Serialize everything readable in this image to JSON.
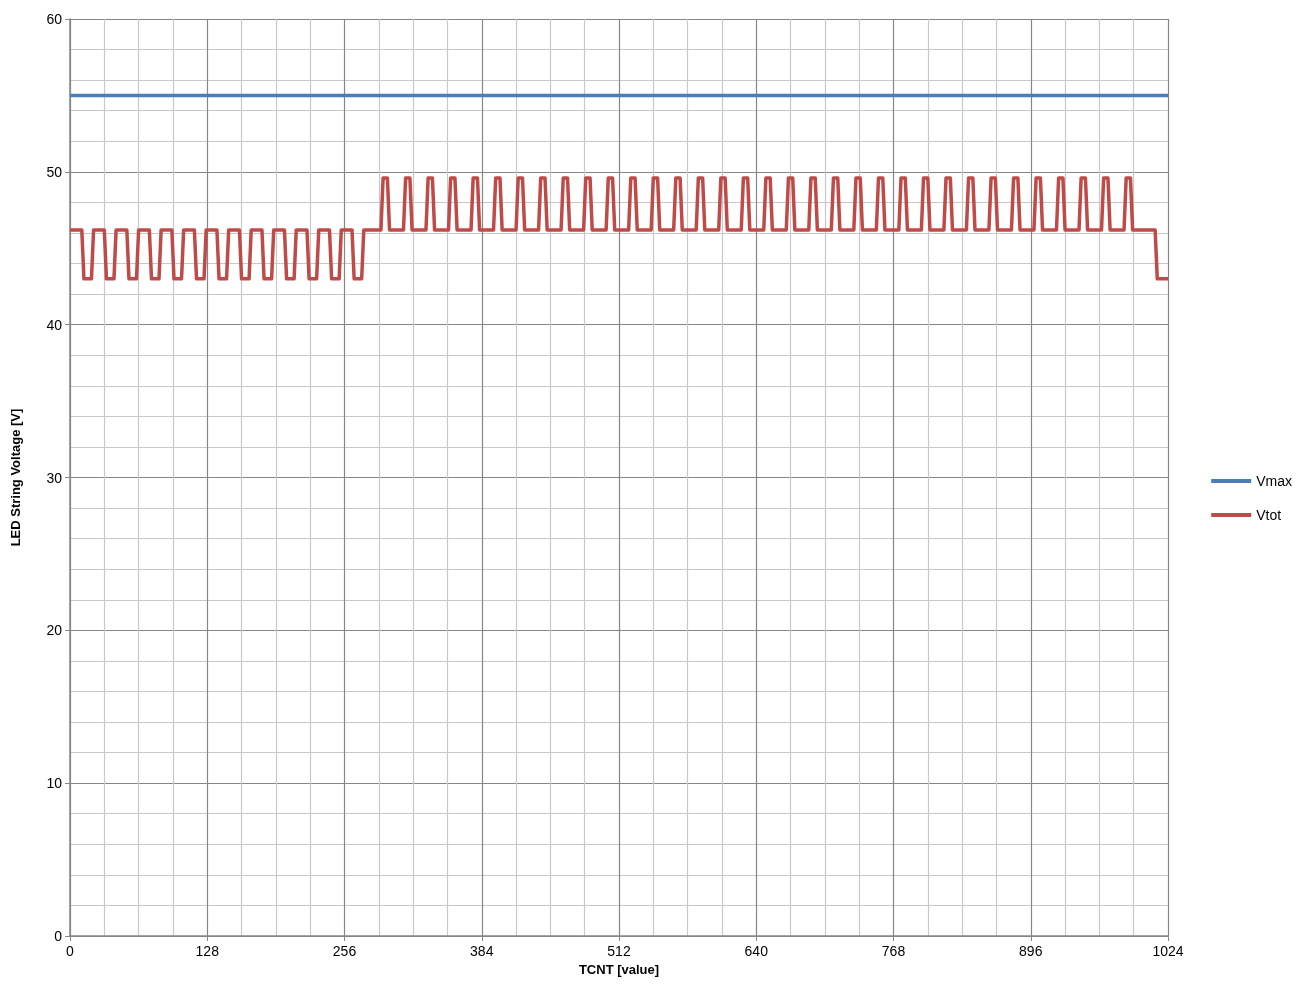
{
  "chart_data": {
    "type": "line",
    "xlabel": "TCNT [value]",
    "ylabel": "LED String Voltage [V]",
    "xlim": [
      0,
      1024
    ],
    "xticks": [
      0,
      128,
      256,
      384,
      512,
      640,
      768,
      896,
      1024
    ],
    "ylim": [
      0,
      60
    ],
    "yticks": [
      0,
      10,
      20,
      30,
      40,
      50,
      60
    ],
    "grid": true,
    "legend": "right",
    "marker": "none",
    "line_style": "solid",
    "series": [
      {
        "name": "Vmax",
        "color": "#4a7ebb",
        "x": [
          0,
          1024
        ],
        "values": [
          55,
          55
        ]
      },
      {
        "name": "Vtot",
        "color": "#be4b48",
        "x": [
          0,
          11,
          13,
          20,
          22,
          32,
          34,
          41,
          43,
          53,
          55,
          62,
          64,
          74,
          76,
          83,
          85,
          95,
          97,
          104,
          106,
          116,
          118,
          125,
          127,
          137,
          139,
          146,
          148,
          158,
          160,
          167,
          169,
          179,
          181,
          188,
          190,
          200,
          202,
          209,
          211,
          221,
          223,
          230,
          232,
          242,
          244,
          251,
          253,
          263,
          265,
          272,
          274,
          290,
          292,
          296,
          298,
          311,
          313,
          317,
          319,
          332,
          334,
          338,
          340,
          353,
          355,
          359,
          361,
          374,
          376,
          380,
          382,
          395,
          397,
          401,
          403,
          416,
          418,
          422,
          424,
          437,
          439,
          443,
          445,
          458,
          460,
          464,
          466,
          479,
          481,
          485,
          487,
          500,
          502,
          506,
          508,
          521,
          523,
          527,
          529,
          542,
          544,
          548,
          550,
          563,
          565,
          569,
          571,
          584,
          586,
          590,
          592,
          605,
          607,
          611,
          613,
          626,
          628,
          632,
          634,
          647,
          649,
          653,
          655,
          668,
          670,
          674,
          676,
          689,
          691,
          695,
          697,
          710,
          712,
          716,
          718,
          731,
          733,
          737,
          739,
          752,
          754,
          758,
          760,
          773,
          775,
          779,
          781,
          794,
          796,
          800,
          802,
          815,
          817,
          821,
          823,
          836,
          838,
          842,
          844,
          857,
          859,
          863,
          865,
          878,
          880,
          884,
          886,
          899,
          901,
          905,
          907,
          920,
          922,
          926,
          928,
          941,
          943,
          947,
          949,
          962,
          964,
          968,
          970,
          983,
          985,
          989,
          991,
          1012,
          1014,
          1024
        ],
        "values": [
          46.2,
          46.2,
          43,
          43,
          46.2,
          46.2,
          43,
          43,
          46.2,
          46.2,
          43,
          43,
          46.2,
          46.2,
          43,
          43,
          46.2,
          46.2,
          43,
          43,
          46.2,
          46.2,
          43,
          43,
          46.2,
          46.2,
          43,
          43,
          46.2,
          46.2,
          43,
          43,
          46.2,
          46.2,
          43,
          43,
          46.2,
          46.2,
          43,
          43,
          46.2,
          46.2,
          43,
          43,
          46.2,
          46.2,
          43,
          43,
          46.2,
          46.2,
          43,
          43,
          46.2,
          46.2,
          49.6,
          49.6,
          46.2,
          46.2,
          49.6,
          49.6,
          46.2,
          46.2,
          49.6,
          49.6,
          46.2,
          46.2,
          49.6,
          49.6,
          46.2,
          46.2,
          49.6,
          49.6,
          46.2,
          46.2,
          49.6,
          49.6,
          46.2,
          46.2,
          49.6,
          49.6,
          46.2,
          46.2,
          49.6,
          49.6,
          46.2,
          46.2,
          49.6,
          49.6,
          46.2,
          46.2,
          49.6,
          49.6,
          46.2,
          46.2,
          49.6,
          49.6,
          46.2,
          46.2,
          49.6,
          49.6,
          46.2,
          46.2,
          49.6,
          49.6,
          46.2,
          46.2,
          49.6,
          49.6,
          46.2,
          46.2,
          49.6,
          49.6,
          46.2,
          46.2,
          49.6,
          49.6,
          46.2,
          46.2,
          49.6,
          49.6,
          46.2,
          46.2,
          49.6,
          49.6,
          46.2,
          46.2,
          49.6,
          49.6,
          46.2,
          46.2,
          49.6,
          49.6,
          46.2,
          46.2,
          49.6,
          49.6,
          46.2,
          46.2,
          49.6,
          49.6,
          46.2,
          46.2,
          49.6,
          49.6,
          46.2,
          46.2,
          49.6,
          49.6,
          46.2,
          46.2,
          49.6,
          49.6,
          46.2,
          46.2,
          49.6,
          49.6,
          46.2,
          46.2,
          49.6,
          49.6,
          46.2,
          46.2,
          49.6,
          49.6,
          46.2,
          46.2,
          49.6,
          49.6,
          46.2,
          46.2,
          49.6,
          49.6,
          46.2,
          46.2,
          49.6,
          49.6,
          46.2,
          46.2,
          49.6,
          49.6,
          46.2,
          46.2,
          49.6,
          49.6,
          46.2,
          46.2,
          49.6,
          49.6,
          46.2,
          46.2,
          43,
          43
        ]
      }
    ]
  }
}
